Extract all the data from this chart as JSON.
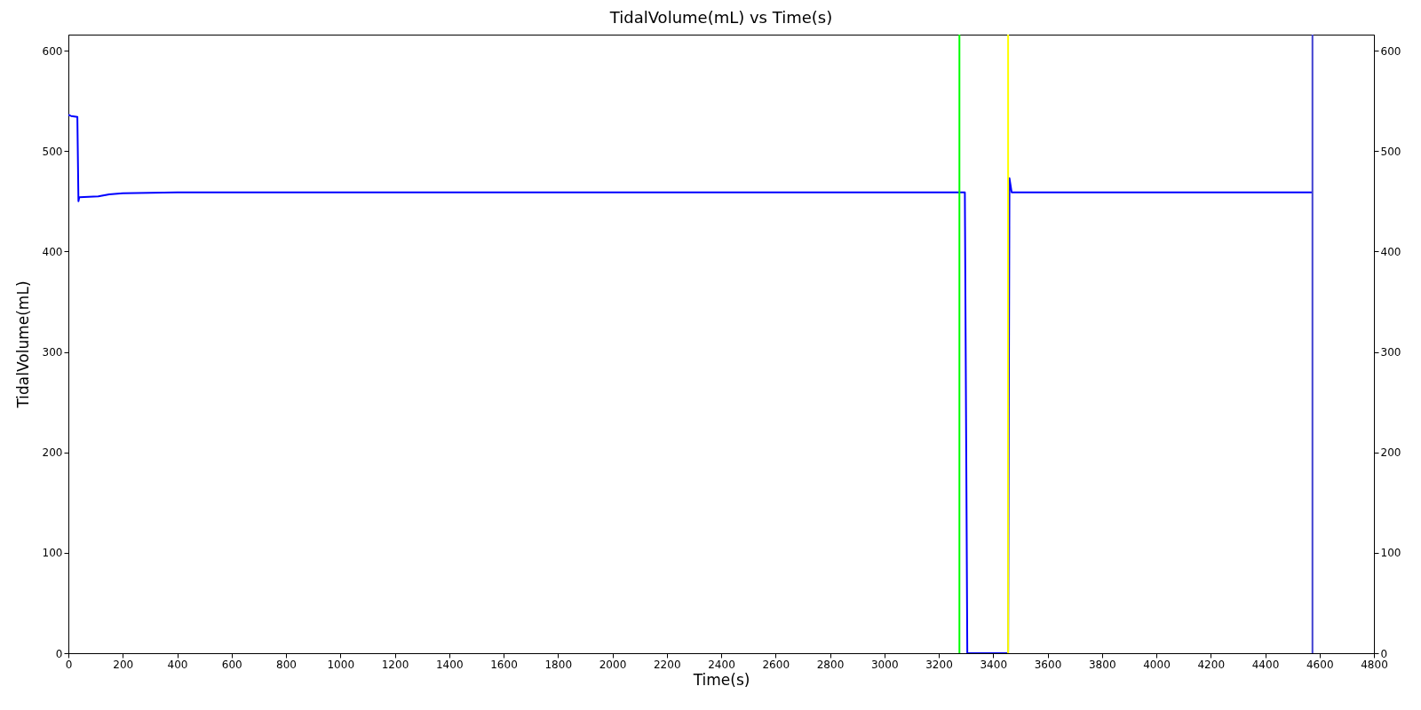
{
  "chart_data": {
    "type": "line",
    "title": "TidalVolume(mL) vs Time(s)",
    "xlabel": "Time(s)",
    "ylabel": "TidalVolume(mL)",
    "xlim": [
      0,
      4800
    ],
    "xticks": [
      0,
      200,
      400,
      600,
      800,
      1000,
      1200,
      1400,
      1600,
      1800,
      2000,
      2200,
      2400,
      2600,
      2800,
      3000,
      3200,
      3400,
      3600,
      3800,
      4000,
      4200,
      4400,
      4600,
      4800
    ],
    "ylim": [
      0,
      616
    ],
    "yticks": [
      0,
      100,
      200,
      300,
      400,
      500,
      600
    ],
    "y2lim": [
      0,
      616
    ],
    "y2ticks": [
      0,
      100,
      200,
      300,
      400,
      500,
      600
    ],
    "grid": false,
    "legend": false,
    "series": [
      {
        "color": "#0000ff",
        "x": [
          0,
          10,
          33,
          37,
          40,
          110,
          150,
          200,
          400,
          3290,
          3296,
          3305,
          3450,
          3455,
          3460,
          3468,
          4574
        ],
        "values": [
          536,
          535,
          534,
          450,
          454,
          455,
          457,
          458,
          459,
          459,
          459,
          0,
          0,
          0,
          473,
          459,
          459
        ]
      }
    ],
    "ref_lines": [
      {
        "axis": "x",
        "value": 3276,
        "color": "#00ff00"
      },
      {
        "axis": "x",
        "value": 3455,
        "color": "#ffff00"
      },
      {
        "axis": "x",
        "value": 4574,
        "color": "#4040d0"
      }
    ]
  }
}
